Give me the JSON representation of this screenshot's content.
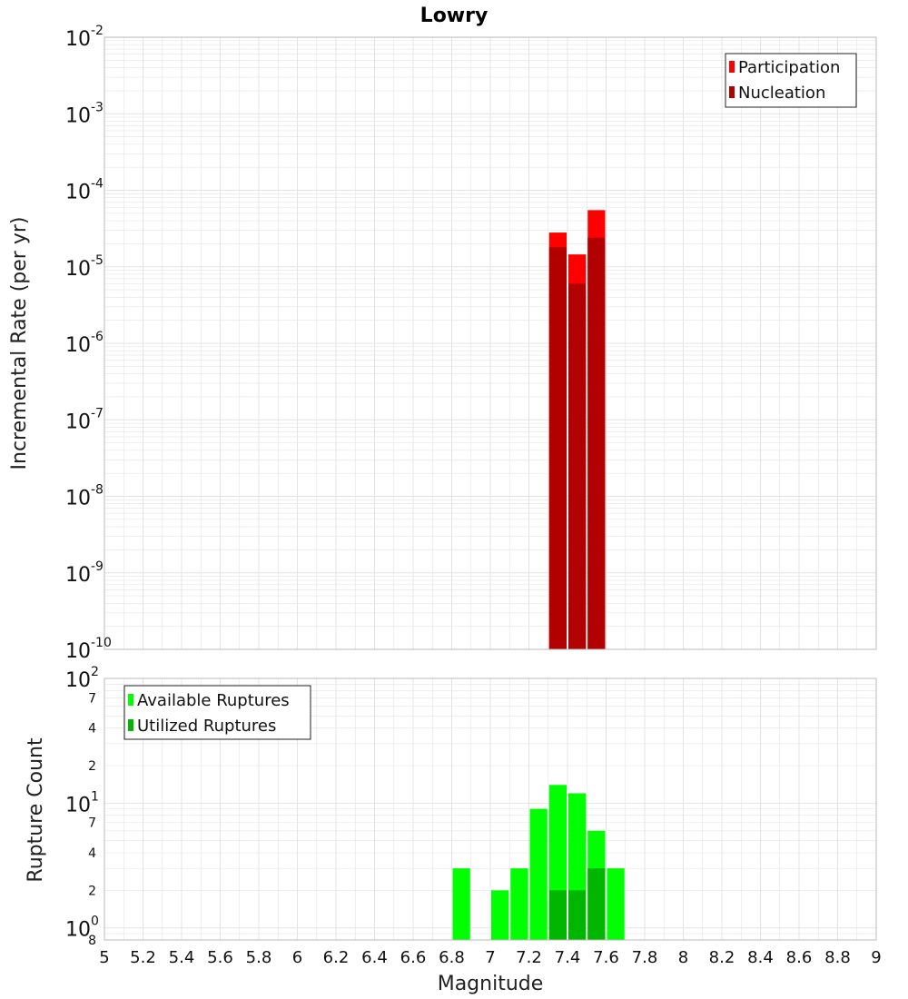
{
  "colors": {
    "participation": "#ff0000",
    "nucleation": "#b20000",
    "available": "#00ff00",
    "utilized": "#00b600",
    "grid": "#e4e4e4",
    "plot_border": "#b8b8b8"
  },
  "chart_data": [
    {
      "type": "bar",
      "title": "Lowry",
      "xlabel": "",
      "ylabel": "Incremental Rate (per yr)",
      "yscale": "log",
      "xlim": [
        5,
        9
      ],
      "ylim": [
        1e-10,
        0.01
      ],
      "y_decades": [
        {
          "base": "10",
          "exp": "-2",
          "value": 0.01
        },
        {
          "base": "10",
          "exp": "-3",
          "value": 0.001
        },
        {
          "base": "10",
          "exp": "-4",
          "value": 0.0001
        },
        {
          "base": "10",
          "exp": "-5",
          "value": 1e-05
        },
        {
          "base": "10",
          "exp": "-6",
          "value": 1e-06
        },
        {
          "base": "10",
          "exp": "-7",
          "value": 1e-07
        },
        {
          "base": "10",
          "exp": "-8",
          "value": 1e-08
        },
        {
          "base": "10",
          "exp": "-9",
          "value": 1e-09
        },
        {
          "base": "10",
          "exp": "-10",
          "value": 1e-10
        }
      ],
      "bar_width": 0.1,
      "legend_position": "top-right",
      "grid": true,
      "series": [
        {
          "name": "Participation",
          "x": [
            7.35,
            7.45,
            7.55
          ],
          "values": [
            2.8e-05,
            1.45e-05,
            5.5e-05
          ]
        },
        {
          "name": "Nucleation",
          "x": [
            7.35,
            7.45,
            7.55
          ],
          "values": [
            1.8e-05,
            6e-06,
            2.4e-05
          ]
        }
      ]
    },
    {
      "type": "bar",
      "xlabel": "Magnitude",
      "ylabel": "Rupture Count",
      "yscale": "log",
      "xlim": [
        5,
        9
      ],
      "ylim": [
        0.8,
        100
      ],
      "x_ticks": [
        "5",
        "5.2",
        "5.4",
        "5.6",
        "5.8",
        "6",
        "6.2",
        "6.4",
        "6.6",
        "6.8",
        "7",
        "7.2",
        "7.4",
        "7.6",
        "7.8",
        "8",
        "8.2",
        "8.4",
        "8.6",
        "8.8",
        "9"
      ],
      "y_decades": [
        {
          "base": "10",
          "exp": "2",
          "value": 100
        },
        {
          "base": "10",
          "exp": "1",
          "value": 10
        },
        {
          "base": "10",
          "exp": "0",
          "value": 1
        }
      ],
      "y_minor_ticks": [
        {
          "label": "7",
          "value": 70
        },
        {
          "label": "4",
          "value": 40
        },
        {
          "label": "2",
          "value": 20
        },
        {
          "label": "7",
          "value": 7
        },
        {
          "label": "4",
          "value": 4
        },
        {
          "label": "2",
          "value": 2
        },
        {
          "label": "8",
          "value": 0.8
        }
      ],
      "bar_width": 0.1,
      "legend_position": "top-left",
      "grid": true,
      "series": [
        {
          "name": "Available Ruptures",
          "x": [
            6.85,
            7.05,
            7.15,
            7.25,
            7.35,
            7.45,
            7.55,
            7.65
          ],
          "values": [
            3,
            2,
            3,
            9,
            14,
            12,
            6,
            3
          ]
        },
        {
          "name": "Utilized Ruptures",
          "x": [
            7.35,
            7.45,
            7.55
          ],
          "values": [
            2,
            2,
            3
          ]
        }
      ]
    }
  ]
}
